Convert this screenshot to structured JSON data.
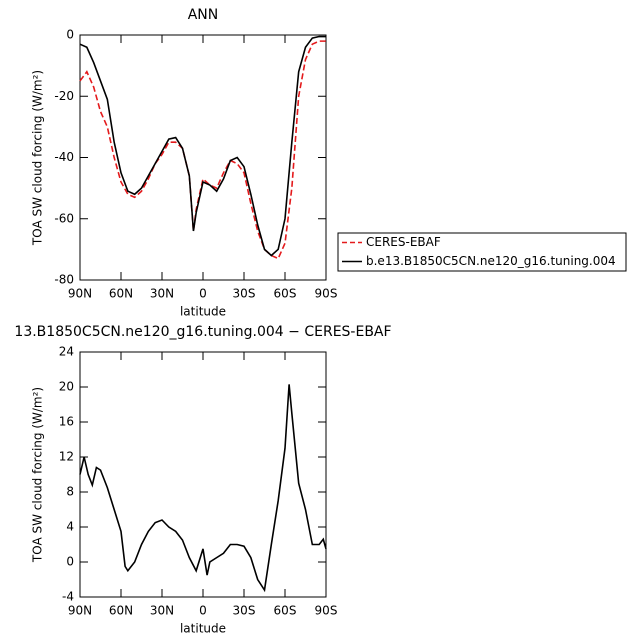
{
  "chart_data": [
    {
      "type": "line",
      "title": "ANN",
      "xlabel": "latitude",
      "ylabel": "TOA SW cloud forcing (W/m²)",
      "xlim": [
        90,
        -90
      ],
      "ylim": [
        -80,
        0
      ],
      "xticks": [
        {
          "value": 90,
          "label": "90N"
        },
        {
          "value": 60,
          "label": "60N"
        },
        {
          "value": 30,
          "label": "30N"
        },
        0,
        {
          "value": -30,
          "label": "30S"
        },
        {
          "value": -60,
          "label": "60S"
        },
        {
          "value": -90,
          "label": "90S"
        }
      ],
      "yticks": [
        -80,
        -60,
        -40,
        -20,
        0
      ],
      "legend": "right",
      "x": [
        90,
        85,
        80,
        75,
        70,
        65,
        60,
        55,
        50,
        45,
        40,
        35,
        30,
        25,
        20,
        15,
        10,
        7,
        5,
        0,
        -5,
        -10,
        -15,
        -20,
        -25,
        -30,
        -35,
        -40,
        -45,
        -50,
        -55,
        -60,
        -65,
        -70,
        -75,
        -80,
        -85,
        -90
      ],
      "series": [
        {
          "name": "CERES-EBAF",
          "color": "#e41a1c",
          "line_style": "dashed",
          "values": [
            -15,
            -12,
            -17,
            -25,
            -30,
            -40,
            -48,
            -52,
            -53,
            -51,
            -47,
            -42,
            -39,
            -35,
            -35,
            -37,
            -46,
            -64,
            -57,
            -47,
            -49,
            -50,
            -45,
            -41,
            -42,
            -45,
            -55,
            -64,
            -70,
            -72,
            -73,
            -68,
            -50,
            -20,
            -8,
            -3,
            -2,
            -2
          ]
        },
        {
          "name": "b.e13.B1850C5CN.ne120_g16.tuning.004",
          "color": "#000000",
          "line_style": "solid",
          "values": [
            -3,
            -4,
            -9,
            -15,
            -21,
            -35,
            -45,
            -51,
            -52,
            -50,
            -46,
            -42,
            -38,
            -34,
            -33.5,
            -37,
            -46,
            -64,
            -58,
            -48,
            -49,
            -51,
            -47,
            -41,
            -40,
            -43,
            -52,
            -62,
            -70,
            -72,
            -70,
            -60,
            -35,
            -12,
            -4,
            -1,
            -0.5,
            -0.5
          ]
        }
      ]
    },
    {
      "type": "line",
      "title": "13.B1850C5CN.ne120_g16.tuning.004 − CERES-EBAF",
      "xlabel": "latitude",
      "ylabel": "TOA SW cloud forcing (W/m²)",
      "xlim": [
        90,
        -90
      ],
      "ylim": [
        -4,
        24
      ],
      "xticks": [
        {
          "value": 90,
          "label": "90N"
        },
        {
          "value": 60,
          "label": "60N"
        },
        {
          "value": 30,
          "label": "30N"
        },
        0,
        {
          "value": -30,
          "label": "30S"
        },
        {
          "value": -60,
          "label": "60S"
        },
        {
          "value": -90,
          "label": "90S"
        }
      ],
      "yticks": [
        -4,
        0,
        4,
        8,
        12,
        16,
        20,
        24
      ],
      "x": [
        90,
        87,
        84,
        81,
        78,
        75,
        70,
        65,
        60,
        57,
        55,
        50,
        45,
        40,
        35,
        30,
        25,
        20,
        15,
        10,
        5,
        0,
        -3,
        -5,
        -10,
        -15,
        -20,
        -25,
        -30,
        -35,
        -40,
        -45,
        -50,
        -55,
        -60,
        -63,
        -65,
        -70,
        -75,
        -80,
        -85,
        -88,
        -90
      ],
      "series": [
        {
          "color": "#000000",
          "line_style": "solid",
          "values": [
            10,
            12,
            10,
            8.8,
            10.8,
            10.5,
            8.5,
            6,
            3.5,
            -0.5,
            -1,
            0,
            2,
            3.5,
            4.5,
            4.8,
            4,
            3.5,
            2.5,
            0.5,
            -1,
            1.5,
            -1.5,
            0,
            0.5,
            1,
            2,
            2,
            1.8,
            0.5,
            -2,
            -3.2,
            2,
            7,
            13,
            20.3,
            17,
            9,
            6,
            2,
            2,
            2.6,
            1.5
          ]
        }
      ]
    }
  ]
}
